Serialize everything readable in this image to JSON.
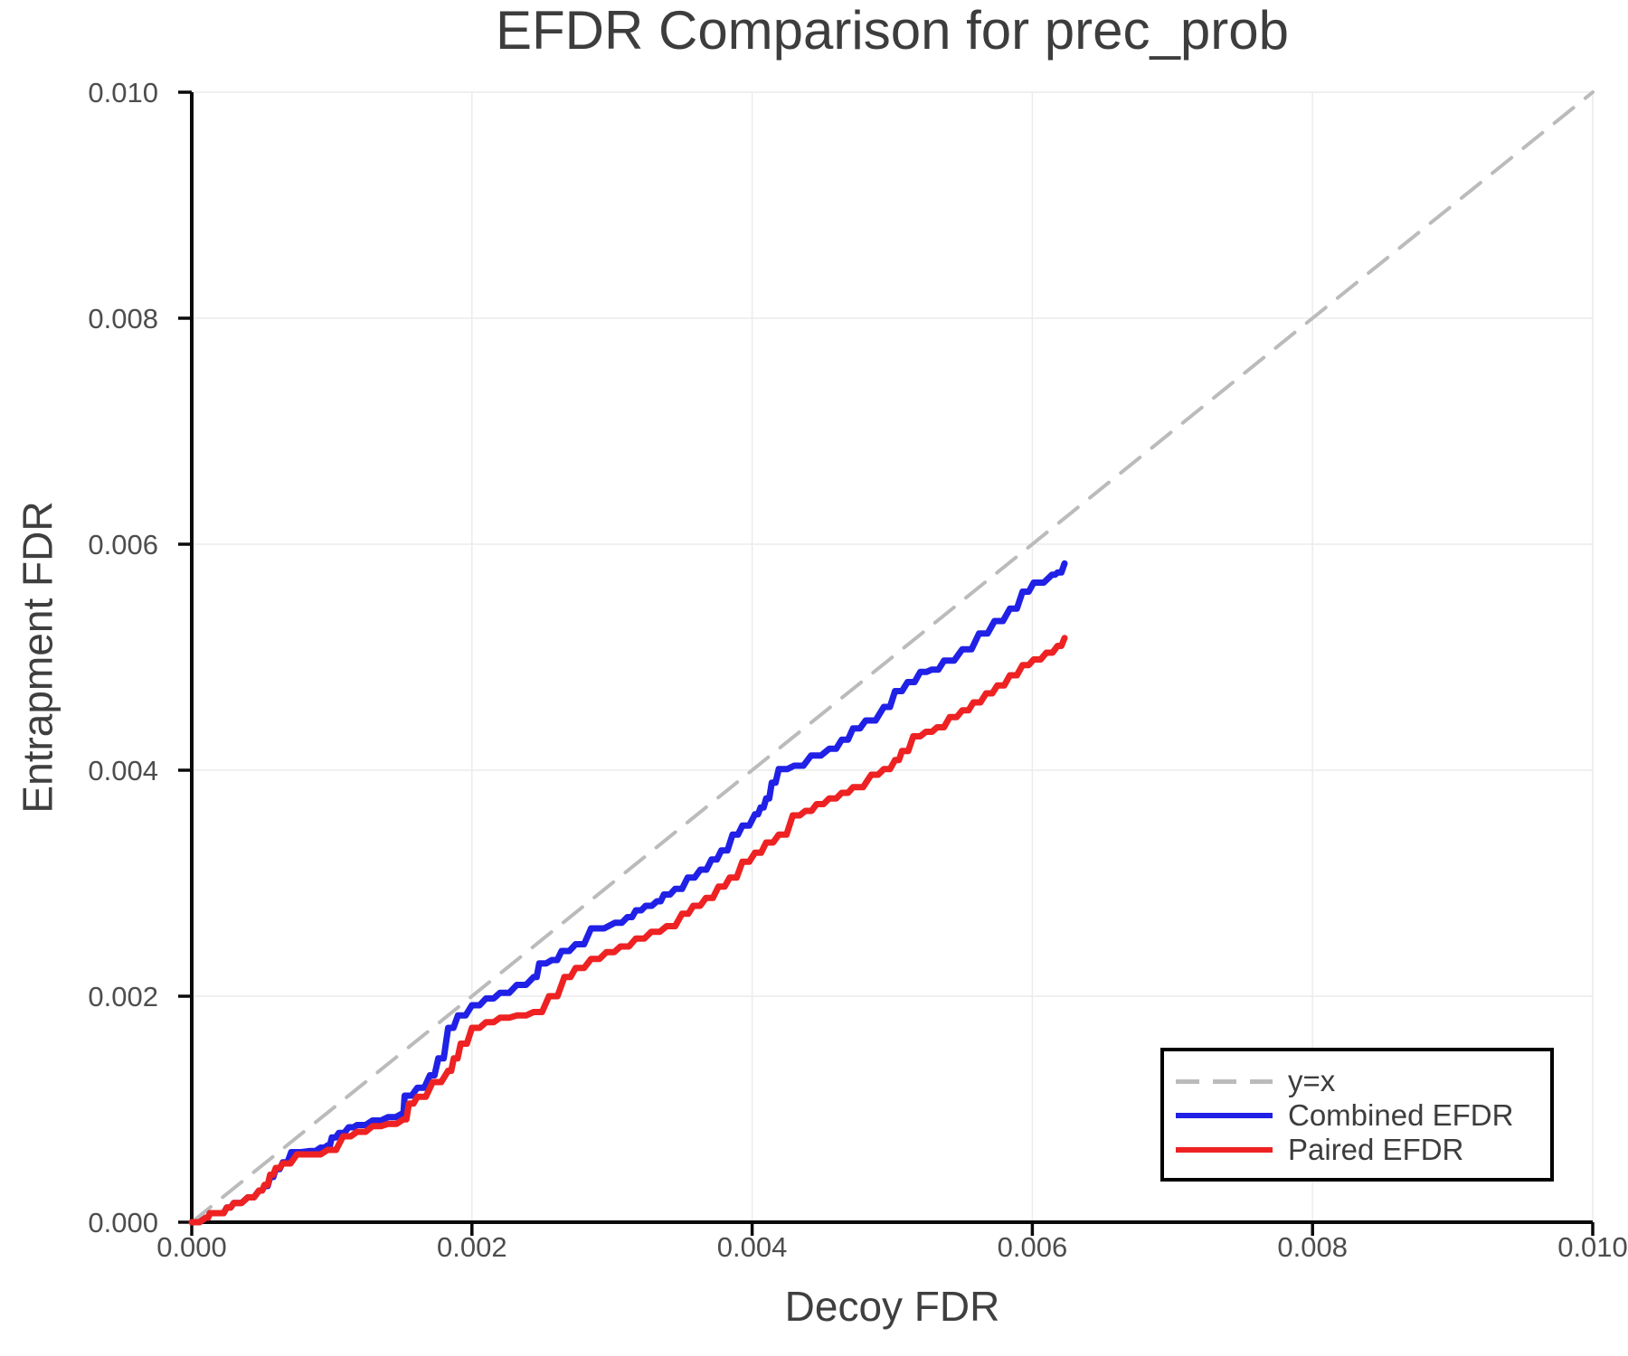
{
  "chart_data": {
    "type": "line",
    "title": "EFDR Comparison for prec_prob",
    "xlabel": "Decoy FDR",
    "ylabel": "Entrapment FDR",
    "xlim": [
      0.0,
      0.01
    ],
    "ylim": [
      0.0,
      0.01
    ],
    "xticks": [
      0.0,
      0.002,
      0.004,
      0.006,
      0.008,
      0.01
    ],
    "yticks": [
      0.0,
      0.002,
      0.004,
      0.006,
      0.008,
      0.01
    ],
    "xtick_labels": [
      "0.000",
      "0.002",
      "0.004",
      "0.006",
      "0.008",
      "0.010"
    ],
    "ytick_labels": [
      "0.000",
      "0.002",
      "0.004",
      "0.006",
      "0.008",
      "0.010"
    ],
    "grid": true,
    "legend_position": "lower right",
    "colors": {
      "reference": "#bbbbbb",
      "combined": "#2020e6",
      "paired": "#ee2222",
      "gridline": "#ececec",
      "spine": "#0a0a0a",
      "tick_label": "#4d4d4d",
      "text": "#3d3d3d"
    },
    "series": [
      {
        "name": "y=x",
        "style": "dashed",
        "color": "#bbbbbb",
        "x": [
          0.0,
          0.01
        ],
        "y": [
          0.0,
          0.01
        ]
      },
      {
        "name": "Combined EFDR",
        "style": "solid",
        "color": "#2020e6",
        "x": [
          0.0,
          0.0001,
          0.00013,
          0.0002,
          0.00025,
          0.0003,
          0.0004,
          0.00048,
          0.00052,
          0.00056,
          0.0006,
          0.00065,
          0.00071,
          0.00084,
          0.00092,
          0.00097,
          0.001,
          0.00105,
          0.00112,
          0.00118,
          0.00129,
          0.0014,
          0.0015,
          0.00152,
          0.00161,
          0.0017,
          0.00176,
          0.00183,
          0.0019,
          0.002,
          0.0021,
          0.0022,
          0.00232,
          0.00244,
          0.00248,
          0.00257,
          0.00264,
          0.00274,
          0.00285,
          0.00302,
          0.00311,
          0.00317,
          0.00324,
          0.00332,
          0.00337,
          0.00345,
          0.00354,
          0.00363,
          0.00371,
          0.00378,
          0.00386,
          0.00393,
          0.00402,
          0.00406,
          0.0041,
          0.00414,
          0.00419,
          0.0043,
          0.00442,
          0.00455,
          0.00464,
          0.00472,
          0.00481,
          0.00494,
          0.00502,
          0.00511,
          0.0052,
          0.00528,
          0.00537,
          0.0055,
          0.00562,
          0.00573,
          0.00584,
          0.00593,
          0.00601,
          0.00614,
          0.00618,
          0.00623
        ],
        "y": [
          0.0,
          4e-05,
          8e-05,
          8e-05,
          0.00013,
          0.00017,
          0.00022,
          0.00028,
          0.00032,
          0.0004,
          0.00047,
          0.00053,
          0.00062,
          0.00063,
          0.00066,
          0.00068,
          0.00075,
          0.00079,
          0.00084,
          0.00086,
          0.0009,
          0.00093,
          0.00096,
          0.00112,
          0.00119,
          0.0013,
          0.00145,
          0.00172,
          0.00183,
          0.00192,
          0.00198,
          0.00203,
          0.0021,
          0.00217,
          0.00229,
          0.00232,
          0.0024,
          0.00246,
          0.0026,
          0.00265,
          0.0027,
          0.00276,
          0.0028,
          0.00284,
          0.0029,
          0.00295,
          0.00305,
          0.00312,
          0.00321,
          0.00329,
          0.00343,
          0.00351,
          0.00361,
          0.00367,
          0.00375,
          0.00389,
          0.00401,
          0.00404,
          0.00413,
          0.00419,
          0.00427,
          0.00437,
          0.00444,
          0.00456,
          0.0047,
          0.00478,
          0.00487,
          0.00489,
          0.00497,
          0.00507,
          0.00521,
          0.00532,
          0.00543,
          0.00558,
          0.00566,
          0.00573,
          0.00575,
          0.00583
        ]
      },
      {
        "name": "Paired EFDR",
        "style": "solid",
        "color": "#ee2222",
        "x": [
          0.0,
          0.0001,
          0.00013,
          0.0002,
          0.00025,
          0.0003,
          0.0004,
          0.00048,
          0.00052,
          0.00056,
          0.0006,
          0.00065,
          0.00075,
          0.00086,
          0.00097,
          0.00108,
          0.00118,
          0.00129,
          0.0014,
          0.00151,
          0.00155,
          0.00161,
          0.00172,
          0.00183,
          0.00187,
          0.00192,
          0.002,
          0.0021,
          0.0022,
          0.00232,
          0.00244,
          0.00255,
          0.00266,
          0.00274,
          0.00285,
          0.00296,
          0.00306,
          0.00317,
          0.00328,
          0.00339,
          0.0035,
          0.00358,
          0.00367,
          0.00376,
          0.00384,
          0.00393,
          0.00402,
          0.0041,
          0.00419,
          0.00429,
          0.00438,
          0.00446,
          0.00455,
          0.00464,
          0.00472,
          0.00485,
          0.00494,
          0.00502,
          0.00507,
          0.00515,
          0.00524,
          0.00532,
          0.00541,
          0.0055,
          0.00558,
          0.00567,
          0.00575,
          0.00584,
          0.00593,
          0.00601,
          0.0061,
          0.00618,
          0.00623
        ],
        "y": [
          0.0,
          4e-05,
          8e-05,
          8e-05,
          0.00013,
          0.00017,
          0.00022,
          0.00028,
          0.00033,
          0.00042,
          0.00048,
          0.00052,
          0.0006,
          0.0006,
          0.00064,
          0.00076,
          0.0008,
          0.00085,
          0.00087,
          0.00091,
          0.00105,
          0.00111,
          0.00124,
          0.00134,
          0.00145,
          0.00158,
          0.00172,
          0.00177,
          0.00181,
          0.00183,
          0.00186,
          0.002,
          0.00217,
          0.00225,
          0.00233,
          0.00239,
          0.00244,
          0.00251,
          0.00257,
          0.00262,
          0.00273,
          0.0028,
          0.00287,
          0.00297,
          0.00305,
          0.00319,
          0.00327,
          0.00336,
          0.00343,
          0.0036,
          0.00364,
          0.0037,
          0.00375,
          0.0038,
          0.00385,
          0.00396,
          0.00401,
          0.00409,
          0.00417,
          0.0043,
          0.00434,
          0.00438,
          0.00447,
          0.00453,
          0.0046,
          0.00468,
          0.00475,
          0.00484,
          0.00493,
          0.00498,
          0.00504,
          0.0051,
          0.00517
        ]
      }
    ]
  }
}
